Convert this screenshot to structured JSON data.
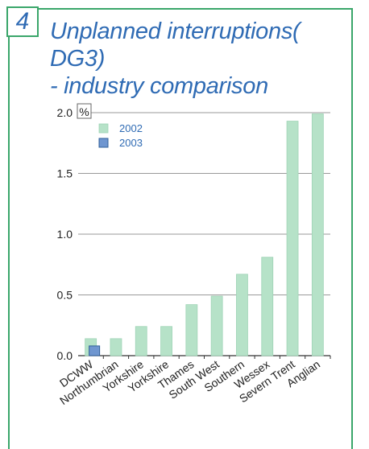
{
  "figure_number": "4",
  "title_line1": "Unplanned interruptions( DG3)",
  "title_line2": "- industry comparison",
  "colors": {
    "frame": "#3aa66a",
    "title": "#2f6bb4",
    "bar_2002": "#b6e2c8",
    "bar_2002_edge": "#9fd4b6",
    "bar_2003": "#6f96d0",
    "bar_2003_edge": "#2f5f99",
    "gridline": "#9a9a9a",
    "axis": "#333333"
  },
  "chart_data": {
    "type": "bar",
    "unit_label": "%",
    "ylim": [
      0,
      2.0
    ],
    "yticks": [
      "0.0",
      "0.5",
      "1.0",
      "1.5",
      "2.0"
    ],
    "grid": true,
    "legend_position": "top-left",
    "categories": [
      "DCWW",
      "Northumbrian",
      "Yorkshire",
      "Yorkshire",
      "Thames",
      "South West",
      "Southern",
      "Wessex",
      "Severn Trent",
      "Anglian"
    ],
    "series": [
      {
        "name": "2002",
        "values": [
          0.14,
          0.14,
          0.24,
          0.24,
          0.42,
          0.49,
          0.67,
          0.81,
          1.93,
          1.99
        ]
      },
      {
        "name": "2003",
        "values": [
          0.08,
          null,
          null,
          null,
          null,
          null,
          null,
          null,
          null,
          null
        ]
      }
    ]
  }
}
